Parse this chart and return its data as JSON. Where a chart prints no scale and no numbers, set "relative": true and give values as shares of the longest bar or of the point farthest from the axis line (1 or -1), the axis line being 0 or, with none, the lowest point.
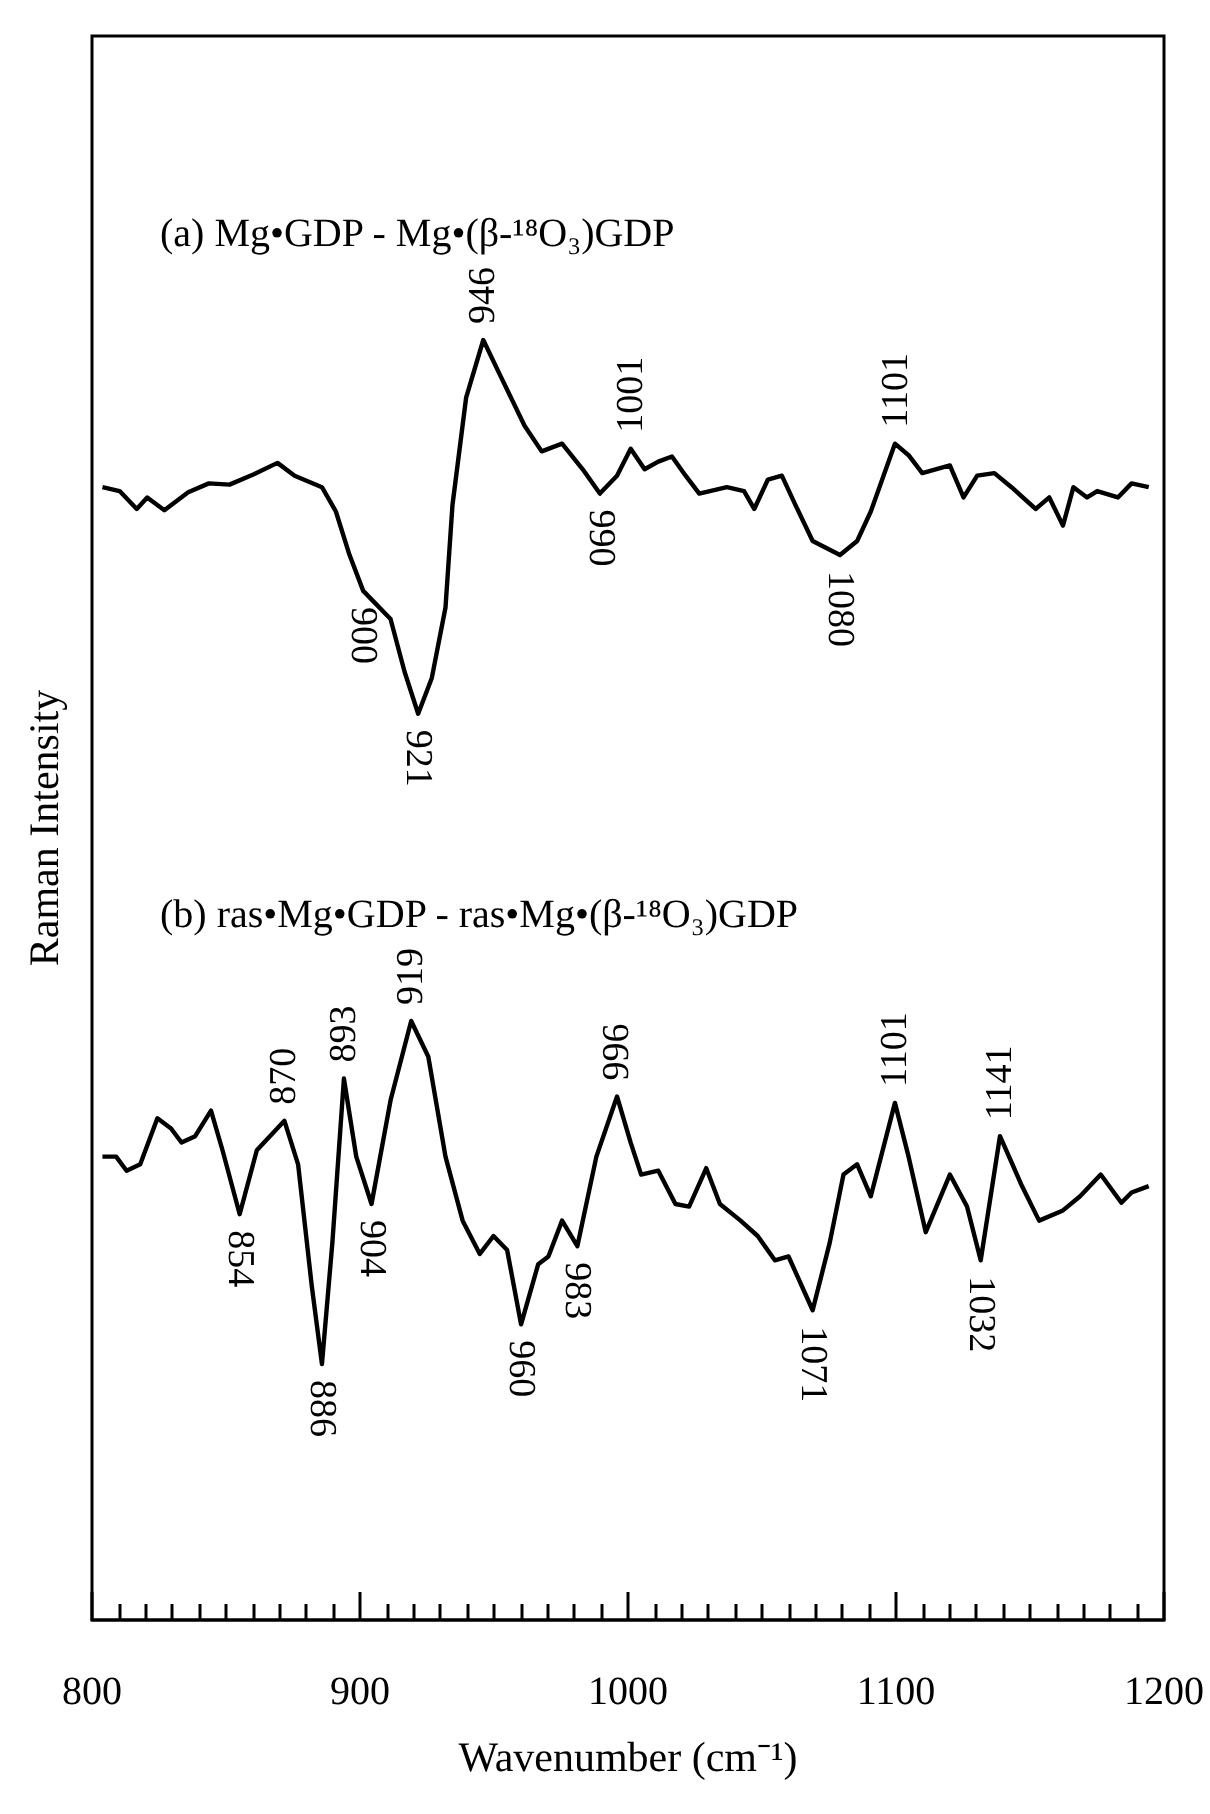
{
  "chart_data": {
    "type": "line",
    "relative": true,
    "xlabel": "Wavenumber (cm⁻¹)",
    "ylabel": "Raman Intensity",
    "xlim": [
      800,
      1200
    ],
    "xticks": [
      800,
      900,
      1000,
      1100,
      1200
    ],
    "series": [
      {
        "color": "#000000",
        "x": [
          803.9,
          810.3,
          816.7,
          820.6,
          827,
          835.9,
          843.6,
          851.3,
          860.2,
          869.2,
          875.6,
          885.8,
          891,
          896.1,
          901.2,
          911.4,
          916.6,
          921.7,
          926.8,
          931.9,
          934.5,
          939.6,
          946,
          952.4,
          961.4,
          967.8,
          975.4,
          983.1,
          989.5,
          995.9,
          1001,
          1006.2,
          1011.3,
          1016.4,
          1021.5,
          1026.6,
          1036.9,
          1043.3,
          1047.1,
          1052.2,
          1057.4,
          1062.5,
          1068.9,
          1079.1,
          1085.5,
          1090.6,
          1099.6,
          1104.7,
          1109.8,
          1120.1,
          1125.2,
          1130.3,
          1136.7,
          1143.1,
          1152.1,
          1157.2,
          1162.3,
          1166.2,
          1171.3,
          1175.1,
          1182.8,
          1187.9,
          1194.3
        ],
        "values": [
          0.885,
          0.882,
          0.868,
          0.877,
          0.867,
          0.881,
          0.888,
          0.887,
          0.895,
          0.904,
          0.894,
          0.885,
          0.866,
          0.832,
          0.804,
          0.782,
          0.741,
          0.708,
          0.736,
          0.791,
          0.871,
          0.955,
          1.0,
          0.972,
          0.933,
          0.913,
          0.919,
          0.899,
          0.88,
          0.894,
          0.915,
          0.899,
          0.905,
          0.909,
          0.894,
          0.88,
          0.885,
          0.882,
          0.868,
          0.891,
          0.894,
          0.871,
          0.843,
          0.832,
          0.843,
          0.866,
          0.919,
          0.91,
          0.896,
          0.902,
          0.877,
          0.894,
          0.896,
          0.885,
          0.868,
          0.877,
          0.855,
          0.885,
          0.877,
          0.882,
          0.877,
          0.888,
          0.885
        ]
      },
      {
        "color": "#000000",
        "x": [
          803.9,
          809,
          812.9,
          818,
          824.4,
          829.5,
          833.4,
          838.5,
          844.4,
          848.7,
          855.1,
          861.5,
          871.8,
          876.9,
          882,
          885.8,
          889.7,
          894,
          898.6,
          904.3,
          911.4,
          919.1,
          925.5,
          931.9,
          938.3,
          944.7,
          949.8,
          954.9,
          960.1,
          966.5,
          970.3,
          975.4,
          981.1,
          988.2,
          995.9,
          1001,
          1004.9,
          1011.3,
          1017.7,
          1022.8,
          1029.2,
          1034.3,
          1042,
          1048.4,
          1054.8,
          1059.9,
          1068.9,
          1075.3,
          1080.4,
          1085.5,
          1090.6,
          1099.6,
          1104.7,
          1111.1,
          1120.1,
          1126.5,
          1131.6,
          1138.8,
          1147,
          1153.4,
          1162.3,
          1168.7,
          1176.4,
          1184.1,
          1187.9,
          1194.3
        ],
        "values": [
          0.362,
          0.362,
          0.351,
          0.356,
          0.392,
          0.384,
          0.373,
          0.378,
          0.398,
          0.367,
          0.317,
          0.367,
          0.39,
          0.356,
          0.261,
          0.2,
          0.295,
          0.423,
          0.362,
          0.325,
          0.406,
          0.468,
          0.44,
          0.362,
          0.312,
          0.286,
          0.3,
          0.289,
          0.231,
          0.278,
          0.284,
          0.312,
          0.292,
          0.362,
          0.409,
          0.373,
          0.348,
          0.351,
          0.325,
          0.323,
          0.353,
          0.325,
          0.312,
          0.3,
          0.281,
          0.284,
          0.242,
          0.295,
          0.348,
          0.356,
          0.331,
          0.404,
          0.362,
          0.303,
          0.348,
          0.323,
          0.281,
          0.378,
          0.339,
          0.312,
          0.32,
          0.331,
          0.348,
          0.326,
          0.334,
          0.339
        ]
      }
    ],
    "annotations": [
      "(a) Mg•GDP - Mg•(β-¹⁸O₃)GDP",
      "(b) ras•Mg•GDP - ras•Mg•(β-¹⁸O₃)GDP",
      {
        "text": "946",
        "x": 946,
        "y": 1.0
      },
      {
        "text": "1001",
        "x": 1001,
        "y": 0.915
      },
      {
        "text": "1101",
        "x": 1100,
        "y": 0.919
      },
      {
        "text": "990",
        "x": 990,
        "y": 0.88
      },
      {
        "text": "1080",
        "x": 1079,
        "y": 0.832
      },
      {
        "text": "900",
        "x": 901,
        "y": 0.804
      },
      {
        "text": "921",
        "x": 921.7,
        "y": 0.708
      },
      {
        "text": "870",
        "x": 871.8,
        "y": 0.39
      },
      {
        "text": "893",
        "x": 894,
        "y": 0.423
      },
      {
        "text": "919",
        "x": 919.1,
        "y": 0.468
      },
      {
        "text": "996",
        "x": 995.9,
        "y": 0.409
      },
      {
        "text": "1101",
        "x": 1099.6,
        "y": 0.404
      },
      {
        "text": "1141",
        "x": 1138.8,
        "y": 0.378
      },
      {
        "text": "854",
        "x": 855.1,
        "y": 0.317
      },
      {
        "text": "886",
        "x": 885.8,
        "y": 0.2
      },
      {
        "text": "904",
        "x": 904.3,
        "y": 0.325
      },
      {
        "text": "960",
        "x": 960.1,
        "y": 0.231
      },
      {
        "text": "983",
        "x": 981.1,
        "y": 0.292
      },
      {
        "text": "1071",
        "x": 1068.9,
        "y": 0.242
      },
      {
        "text": "1032",
        "x": 1131.6,
        "y": 0.281
      }
    ]
  }
}
